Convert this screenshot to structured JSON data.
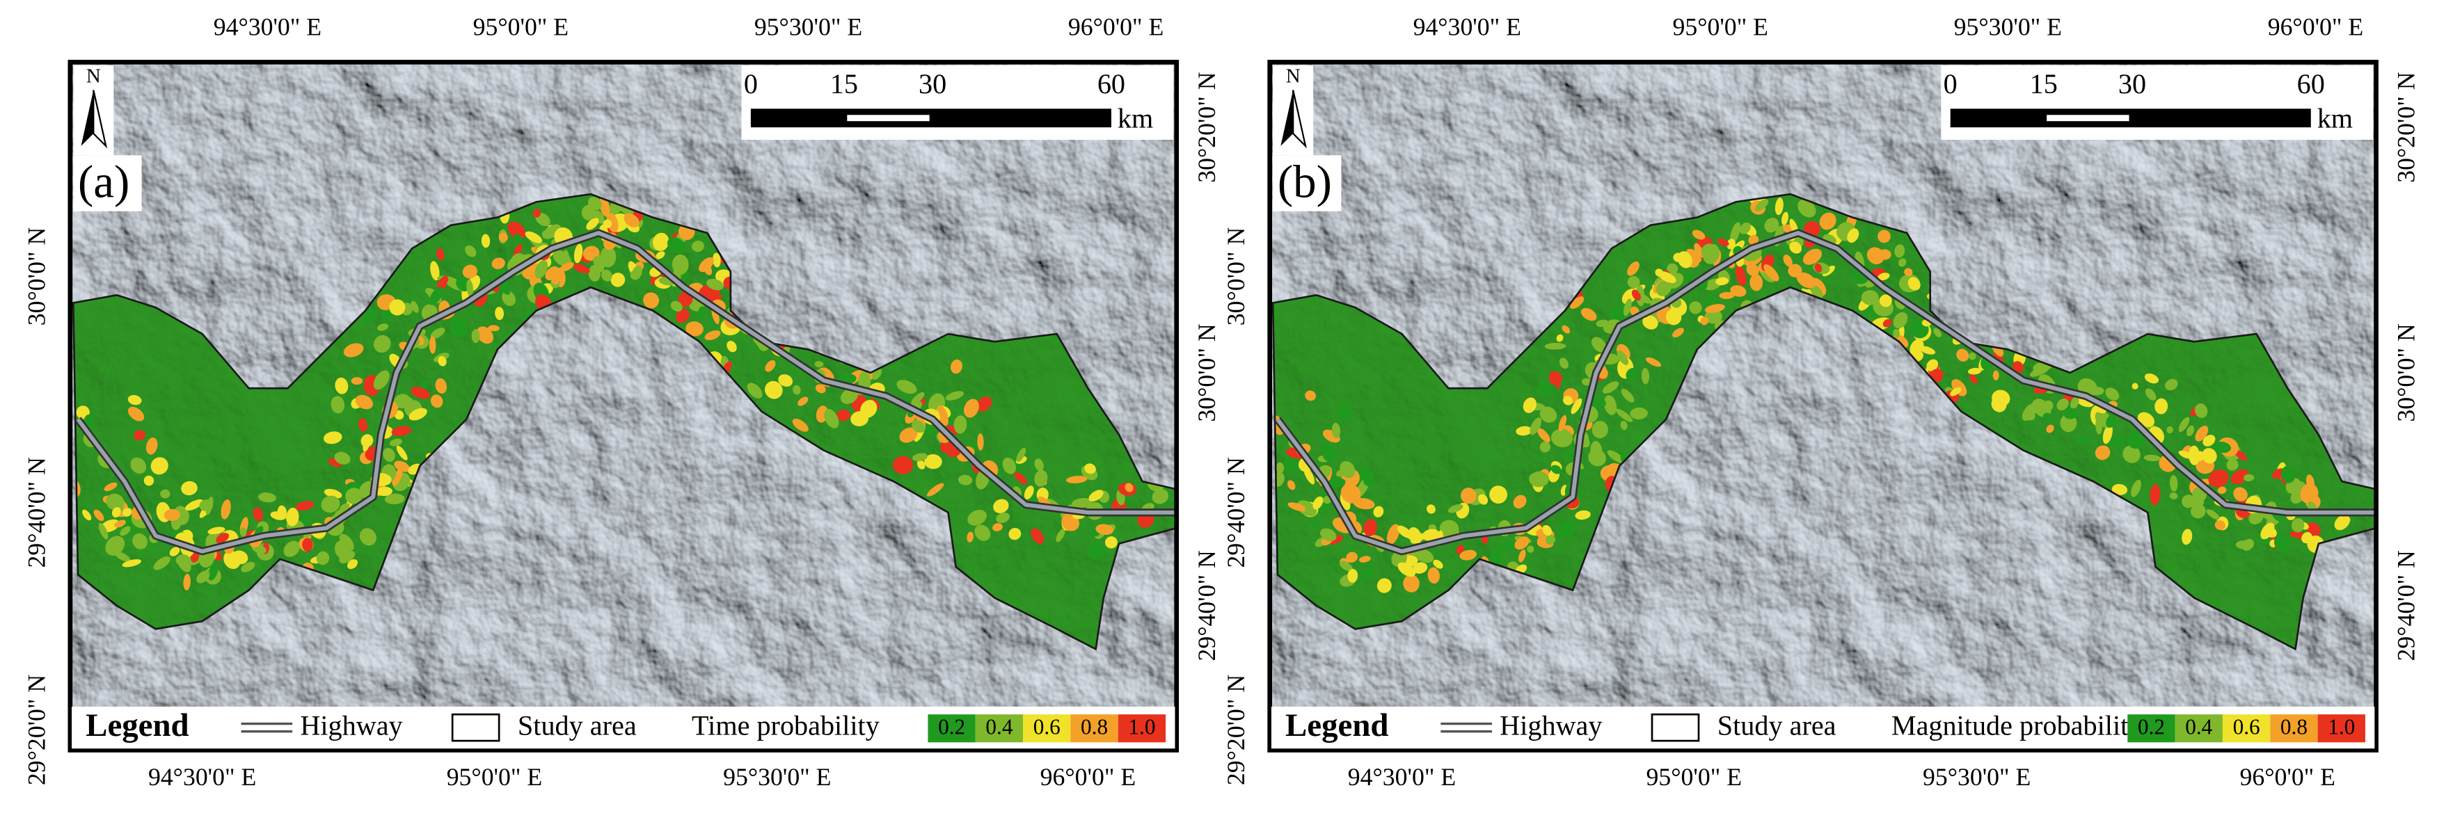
{
  "panels": [
    {
      "label": "(a)",
      "north": "N",
      "top_ticks": [
        "94°30'0\" E",
        "95°0'0\" E",
        "95°30'0\" E",
        "96°0'0\" E"
      ],
      "bottom_ticks": [
        "94°30'0\" E",
        "95°0'0\" E",
        "95°30'0\" E",
        "96°0'0\"  E"
      ],
      "left_ticks": [
        "30°0'0\" N",
        "29°40'0\" N",
        "29°20'0\" N"
      ],
      "right_ticks": [
        "30°20'0\" N",
        "30°0'0\" N",
        "29°40'0\" N"
      ],
      "scale_bar": {
        "ticks": [
          "0",
          "15",
          "30",
          "60"
        ],
        "unit": "km"
      },
      "legend": {
        "title": "Legend",
        "highway": "Highway",
        "study_area": "Study area",
        "probability": "Time probability",
        "classes": [
          "0.2",
          "0.4",
          "0.6",
          "0.8",
          "1.0"
        ],
        "class_colors": [
          "#1f9a1f",
          "#7fb82c",
          "#f0e22a",
          "#f4a12a",
          "#e8321e"
        ]
      }
    },
    {
      "label": "(b)",
      "north": "N",
      "top_ticks": [
        "94°30'0\" E",
        "95°0'0\" E",
        "95°30'0\" E",
        "96°0'0\" E"
      ],
      "bottom_ticks": [
        "94°30'0\" E",
        "95°0'0\" E",
        "95°30'0\" E",
        "96°0'0\"  E"
      ],
      "left_ticks": [
        "30°0'0\" N",
        "29°40'0\" N",
        "29°20'0\" N"
      ],
      "right_ticks": [
        "30°20'0\" N",
        "30°0'0\" N",
        "29°40'0\" N"
      ],
      "scale_bar": {
        "ticks": [
          "0",
          "15",
          "30",
          "60"
        ],
        "unit": "km"
      },
      "legend": {
        "title": "Legend",
        "highway": "Highway",
        "study_area": "Study area",
        "probability": "Magnitude probability",
        "classes": [
          "0.2",
          "0.4",
          "0.6",
          "0.8",
          "1.0"
        ],
        "class_colors": [
          "#1f9a1f",
          "#7fb82c",
          "#f0e22a",
          "#f4a12a",
          "#e8321e"
        ]
      }
    }
  ]
}
